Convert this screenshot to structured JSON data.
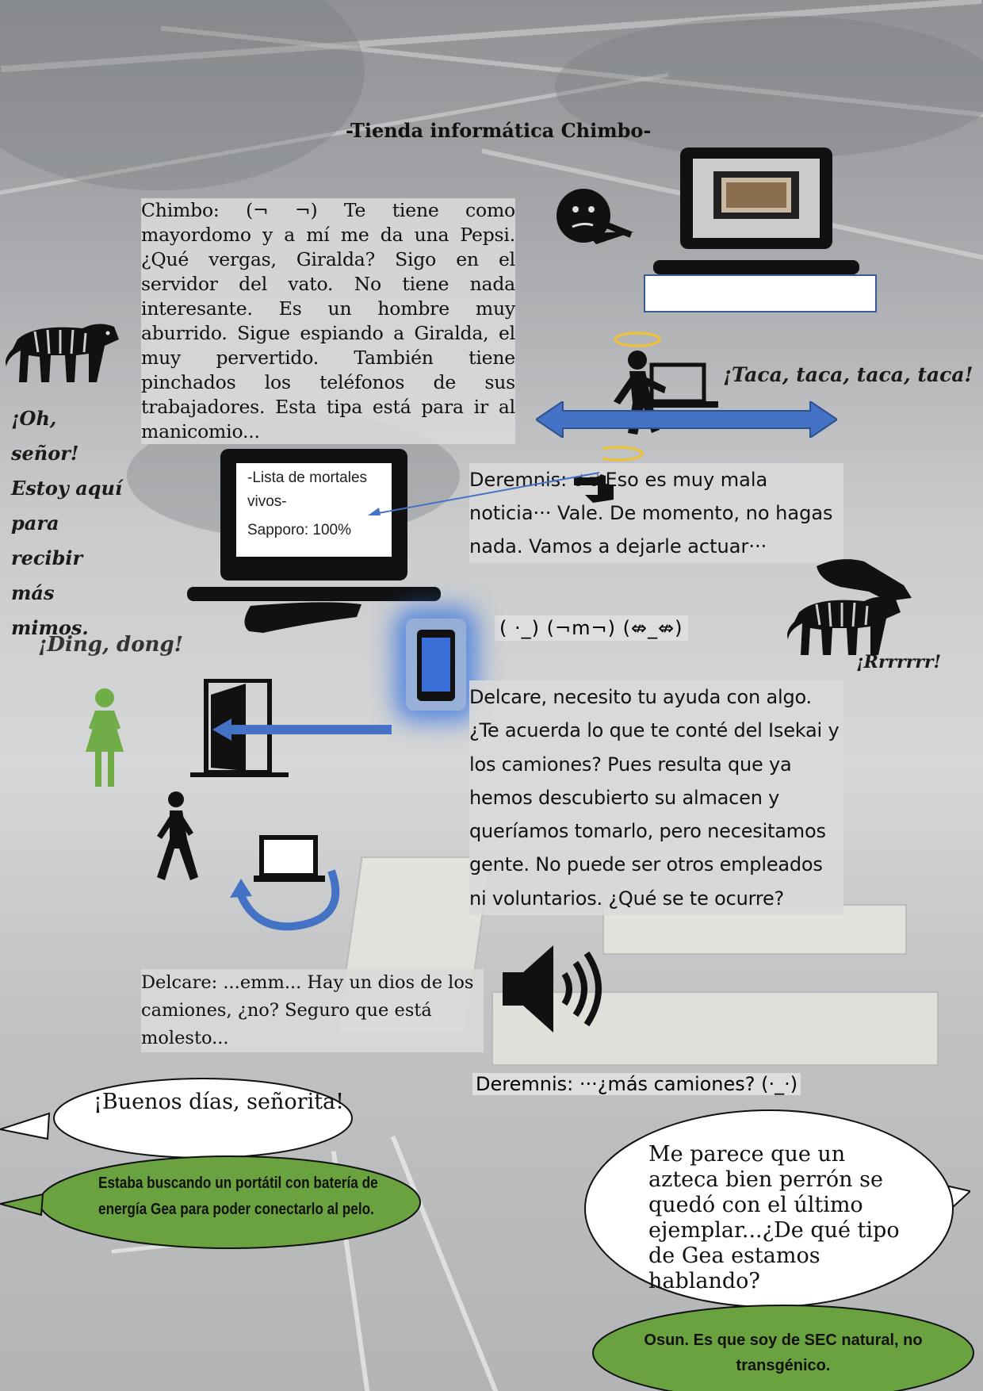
{
  "title": "-Tienda informática Chimbo-",
  "chimbo_text": "Chimbo: (¬ ¬) Te tiene como mayordomo y a mí me da una Pepsi. ¿Qué vergas, Giralda? Sigo en el servidor del vato. No tiene nada interesante. Es un hombre muy aburrido. Sigue espiando a Giralda, el muy pervertido. También tiene pinchados los teléfonos de sus trabajadores. Esta tipa está para ir al manicomio...",
  "tiger_text": "¡Oh, señor! Estoy aquí para recibir más mimos.",
  "taca_text": "¡Taca, taca, taca, taca!",
  "deremnis_text_1": "Deremnis: ಠ ಠ  Eso es muy mala noticia··· Vale. De momento, no hagas nada. Vamos a dejarle actuar···",
  "laptop_screen": {
    "line1": "-Lista de mortales",
    "line2": "vivos-",
    "line3": "Sapporo: 100%"
  },
  "ding_dong": "¡Ding, dong!",
  "kaomojis": "( ·_)    (¬m¬)    (⇎_⇎)",
  "rrr_text": "¡Rrrrrrr!",
  "delcare_text_1": "Delcare, necesito tu ayuda con algo. ¿Te acuerda lo que te conté del Isekai y los camiones? Pues resulta que ya hemos descubierto su almacen y queríamos tomarlo, pero necesitamos gente. No puede ser otros empleados ni voluntarios. ¿Qué se te ocurre?",
  "delcare_text_2": "Delcare: ...emm... Hay un dios de los camiones, ¿no? Seguro que está molesto...",
  "deremnis_text_2": "Deremnis: ···¿más camiones? (·_·)",
  "bubbles": {
    "buenos_dias": "¡Buenos días, señorita!",
    "estaba_buscando": "Estaba buscando un portátil con batería de energía Gea para poder conectarlo al pelo.",
    "me_parece": "Me parece que un azteca bien perrón se quedó con el último ejemplar...¿De qué tipo de Gea estamos hablando?",
    "osun": "Osun. Es que soy de SEC natural, no transgénico."
  },
  "colors": {
    "speech_green": "#6aa23f",
    "arrow_blue": "#4472c4",
    "woman_green": "#70ad47",
    "halo_gold": "#f2c12e",
    "phone_glow": "#2f6fe0"
  },
  "icons": [
    "thinking-face-icon",
    "laptop-icon",
    "angel-worker-laptop-icon",
    "double-arrow-icon",
    "tiger-icon",
    "petting-hand-icon",
    "smartphone-icon",
    "woman-icon",
    "door-icon",
    "walking-man-icon",
    "laptop-return-icon",
    "speaker-icon",
    "pointing-hand-icon"
  ]
}
